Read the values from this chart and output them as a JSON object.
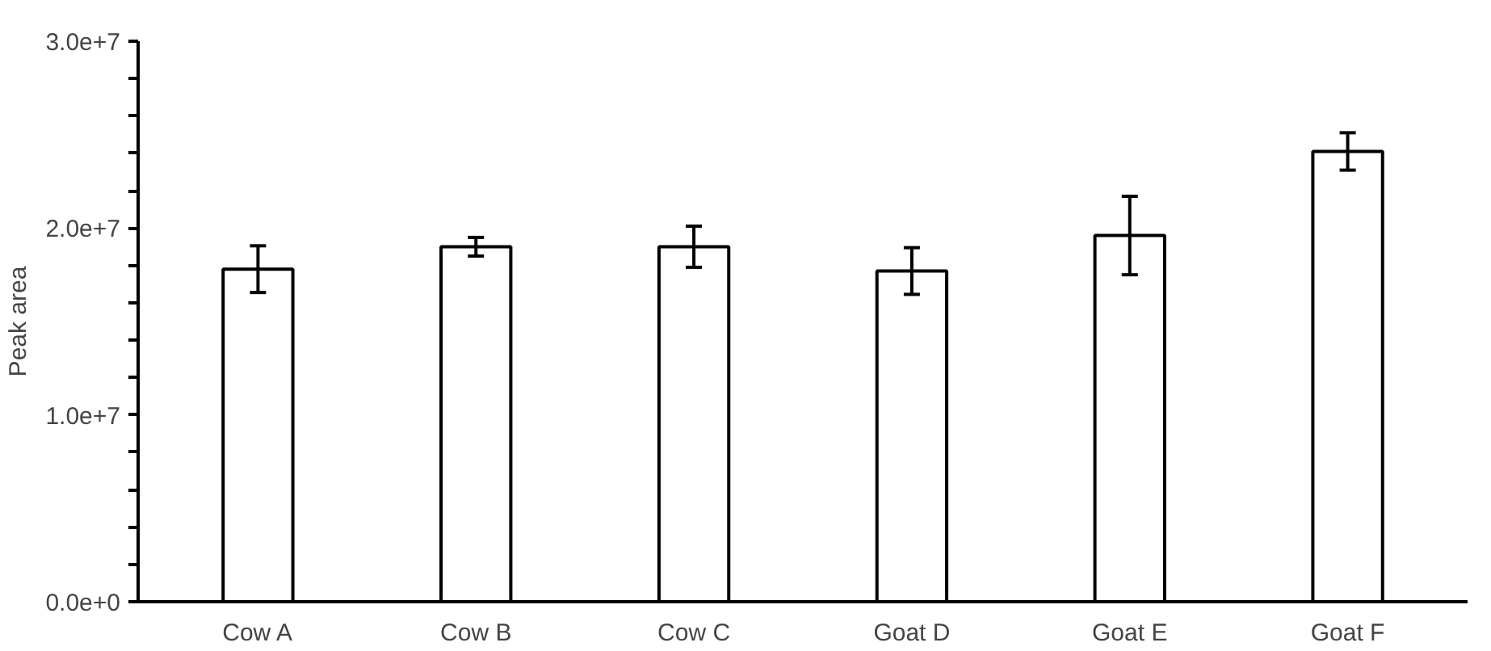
{
  "chart_data": {
    "type": "bar",
    "ylabel": "Peak area",
    "categories": [
      "Cow A",
      "Cow B",
      "Cow C",
      "Goat D",
      "Goat E",
      "Goat F"
    ],
    "values": [
      17800000,
      19000000,
      19000000,
      17700000,
      19600000,
      24100000
    ],
    "errors": [
      1250000,
      500000,
      1100000,
      1250000,
      2100000,
      1000000
    ],
    "color": "#ffffff",
    "ylim": [
      0,
      30000000
    ],
    "yticks": [
      {
        "value": 0,
        "label": "0.0e+0"
      },
      {
        "value": 2000000,
        "label": null
      },
      {
        "value": 4000000,
        "label": null
      },
      {
        "value": 6000000,
        "label": null
      },
      {
        "value": 8000000,
        "label": null
      },
      {
        "value": 10000000,
        "label": "1.0e+7"
      },
      {
        "value": 12000000,
        "label": null
      },
      {
        "value": 14000000,
        "label": null
      },
      {
        "value": 16000000,
        "label": null
      },
      {
        "value": 18000000,
        "label": null
      },
      {
        "value": 20000000,
        "label": "2.0e+7"
      },
      {
        "value": 22000000,
        "label": null
      },
      {
        "value": 24000000,
        "label": null
      },
      {
        "value": 26000000,
        "label": null
      },
      {
        "value": 28000000,
        "label": null
      },
      {
        "value": 30000000,
        "label": "3.0e+7"
      }
    ],
    "grid": false
  }
}
